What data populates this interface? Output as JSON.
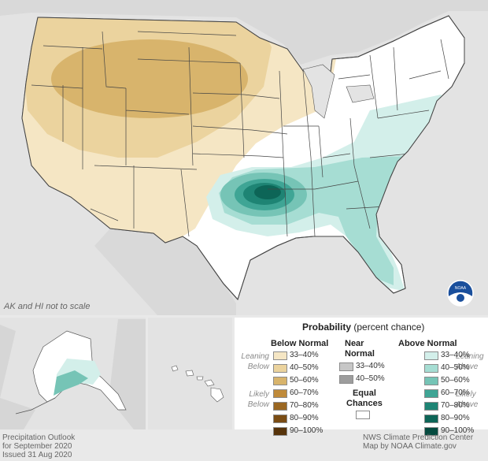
{
  "map": {
    "scale_note": "AK and HI not to scale",
    "logo_text": "NOAA"
  },
  "legend": {
    "title": "Probability",
    "title_suffix": "(percent chance)",
    "below": {
      "heading": "Below Normal",
      "leaning": [
        "Leaning",
        "Below"
      ],
      "likely": [
        "Likely",
        "Below"
      ],
      "items": [
        {
          "label": "33–40%",
          "color": "#f5e6c4"
        },
        {
          "label": "40–50%",
          "color": "#ebd39e"
        },
        {
          "label": "50–60%",
          "color": "#d8b46c"
        },
        {
          "label": "60–70%",
          "color": "#bf8a3a"
        },
        {
          "label": "70–80%",
          "color": "#9a6722"
        },
        {
          "label": "80–90%",
          "color": "#7a4c14"
        },
        {
          "label": "90–100%",
          "color": "#56330a"
        }
      ]
    },
    "near": {
      "heading": [
        "Near",
        "Normal"
      ],
      "items": [
        {
          "label": "33–40%",
          "color": "#c7c7c7"
        },
        {
          "label": "40–50%",
          "color": "#9d9d9d"
        }
      ]
    },
    "equal": {
      "heading": [
        "Equal",
        "Chances"
      ],
      "color": "#ffffff"
    },
    "above": {
      "heading": "Above Normal",
      "leaning": [
        "Leaning",
        "Above"
      ],
      "likely": [
        "Likely",
        "Above"
      ],
      "items": [
        {
          "label": "33–40%",
          "color": "#d3efea"
        },
        {
          "label": "40–50%",
          "color": "#a6ddd3"
        },
        {
          "label": "50–60%",
          "color": "#76c4b6"
        },
        {
          "label": "60–70%",
          "color": "#3fa595"
        },
        {
          "label": "70–80%",
          "color": "#1e8474"
        },
        {
          "label": "80–90%",
          "color": "#0d6557"
        },
        {
          "label": "90–100%",
          "color": "#054a3f"
        }
      ]
    }
  },
  "footer": {
    "left": [
      "Precipitation Outlook",
      "for September 2020",
      "Issued 31 Aug 2020"
    ],
    "right": [
      "NWS Climate Prediction Center",
      "Map by NOAA Climate.gov"
    ]
  }
}
